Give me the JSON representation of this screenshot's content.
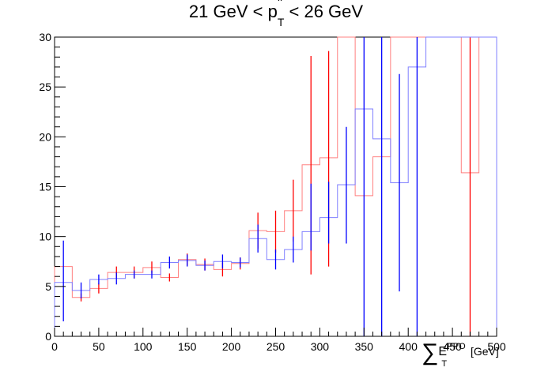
{
  "chart_data": {
    "type": "histogram",
    "title": {
      "pre": "21 GeV < p",
      "sup": "ll",
      "sub": "T",
      "post": " < 26 GeV"
    },
    "xlabel": {
      "symbol": "∑",
      "main": "E",
      "sup": "PPO",
      "sub": "T",
      "unit": " [GeV]"
    },
    "ylabel": "",
    "xlim": [
      0,
      500
    ],
    "ylim": [
      0,
      30
    ],
    "x_ticks": [
      0,
      50,
      100,
      150,
      200,
      250,
      300,
      350,
      400,
      450,
      500
    ],
    "y_ticks": [
      0,
      5,
      10,
      15,
      20,
      25,
      30
    ],
    "grid": false,
    "legend": "none",
    "series": [
      {
        "color": "#ff0000",
        "line_color": "#ff8080",
        "bin_edges": [
          0,
          20,
          40,
          60,
          80,
          100,
          120,
          140,
          160,
          180,
          200,
          220,
          240,
          260,
          280,
          300,
          320,
          340,
          360,
          380,
          400,
          420,
          440,
          460,
          480,
          500
        ],
        "values": [
          7.0,
          3.9,
          4.8,
          6.4,
          6.4,
          6.9,
          5.9,
          7.7,
          7.2,
          6.7,
          7.3,
          10.6,
          10.5,
          12.6,
          17.2,
          17.9,
          30,
          14.1,
          18.0,
          30,
          30,
          30,
          30,
          16.4,
          30
        ],
        "err_low": [
          12.6,
          3.5,
          4.3,
          5.8,
          5.8,
          6.3,
          5.5,
          7.1,
          6.6,
          6.0,
          6.7,
          8.8,
          8.4,
          9.5,
          6.2,
          7.0,
          30,
          0,
          0,
          30,
          30,
          30,
          30,
          0,
          30
        ],
        "err_high": [
          12.6,
          4.3,
          5.3,
          7.0,
          7.0,
          7.5,
          6.3,
          8.3,
          7.8,
          7.4,
          7.9,
          12.4,
          12.6,
          15.7,
          28.1,
          28.6,
          30,
          30,
          30,
          30,
          30,
          30,
          30,
          30,
          30
        ],
        "show_err": [
          true,
          true,
          true,
          true,
          true,
          true,
          true,
          true,
          true,
          true,
          true,
          true,
          true,
          true,
          true,
          true,
          false,
          false,
          false,
          false,
          false,
          false,
          false,
          true,
          false
        ]
      },
      {
        "color": "#0000ff",
        "line_color": "#8080ff",
        "bin_edges": [
          0,
          20,
          40,
          60,
          80,
          100,
          120,
          140,
          160,
          180,
          200,
          220,
          240,
          260,
          280,
          300,
          320,
          340,
          360,
          380,
          400,
          420,
          440,
          460,
          480,
          500
        ],
        "values": [
          5.4,
          4.6,
          5.7,
          5.8,
          6.2,
          6.2,
          7.4,
          7.6,
          7.1,
          7.5,
          7.4,
          9.8,
          7.7,
          8.7,
          10.5,
          11.9,
          15.2,
          22.8,
          19.8,
          15.4,
          27.0,
          30,
          30,
          30,
          30
        ],
        "err_low": [
          1.5,
          3.8,
          5.2,
          5.2,
          5.8,
          5.8,
          6.8,
          7.0,
          6.6,
          6.8,
          6.9,
          8.4,
          6.7,
          7.4,
          8.6,
          9.3,
          9.3,
          0,
          0,
          4.5,
          0,
          30,
          30,
          30,
          30
        ],
        "err_high": [
          9.6,
          5.4,
          6.2,
          6.4,
          6.6,
          6.6,
          8.0,
          8.2,
          7.6,
          8.2,
          7.9,
          11.2,
          8.7,
          10.0,
          15.3,
          15.5,
          21.0,
          30,
          30,
          26.3,
          30,
          30,
          30,
          30,
          30
        ],
        "show_err": [
          true,
          true,
          true,
          true,
          true,
          true,
          true,
          true,
          true,
          true,
          true,
          true,
          true,
          true,
          true,
          true,
          true,
          true,
          true,
          true,
          true,
          false,
          false,
          false,
          false
        ]
      }
    ]
  }
}
